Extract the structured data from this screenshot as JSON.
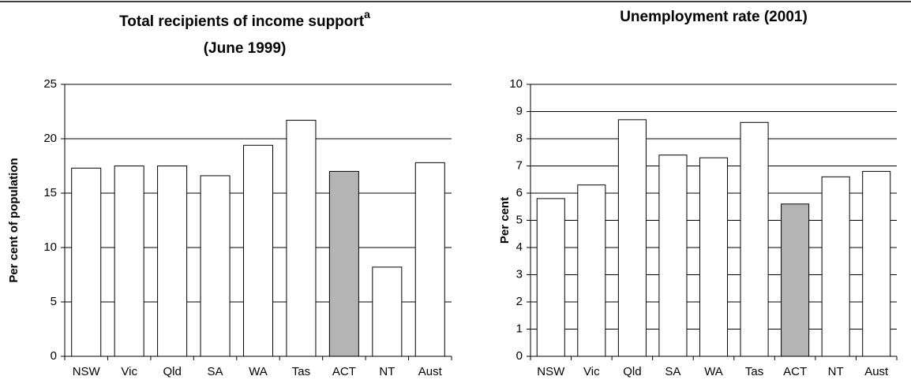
{
  "chart_data": [
    {
      "type": "bar",
      "title": "Total recipients of income support",
      "title_superscript": "a",
      "subtitle": "(June 1999)",
      "ylabel": "Per cent of population",
      "categories": [
        "NSW",
        "Vic",
        "Qld",
        "SA",
        "WA",
        "Tas",
        "ACT",
        "NT",
        "Aust"
      ],
      "values": [
        17.3,
        17.5,
        17.5,
        16.6,
        19.4,
        21.7,
        17.0,
        8.2,
        17.8
      ],
      "colors": [
        "#ffffff",
        "#ffffff",
        "#ffffff",
        "#ffffff",
        "#ffffff",
        "#ffffff",
        "#b4b4b4",
        "#ffffff",
        "#ffffff"
      ],
      "ylim": [
        0,
        25
      ],
      "yticks": [
        0,
        5,
        10,
        15,
        20,
        25
      ],
      "grid": true
    },
    {
      "type": "bar",
      "title": "Unemployment rate (2001)",
      "ylabel": "Per cent",
      "categories": [
        "NSW",
        "Vic",
        "Qld",
        "SA",
        "WA",
        "Tas",
        "ACT",
        "NT",
        "Aust"
      ],
      "values": [
        5.8,
        6.3,
        8.7,
        7.4,
        7.3,
        8.6,
        5.6,
        6.6,
        6.8
      ],
      "colors": [
        "#ffffff",
        "#ffffff",
        "#ffffff",
        "#ffffff",
        "#ffffff",
        "#ffffff",
        "#b4b4b4",
        "#ffffff",
        "#ffffff"
      ],
      "ylim": [
        0,
        10
      ],
      "yticks": [
        0,
        1,
        2,
        3,
        4,
        5,
        6,
        7,
        8,
        9,
        10
      ],
      "grid": true
    }
  ]
}
